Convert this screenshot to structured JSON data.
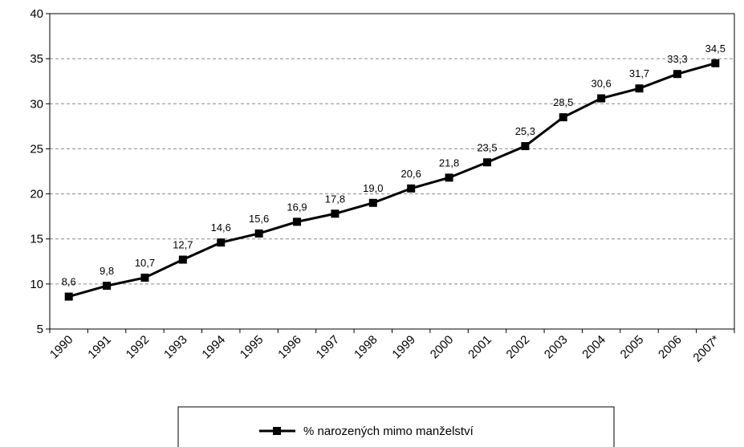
{
  "chart_data": {
    "type": "line",
    "categories": [
      "1990",
      "1991",
      "1992",
      "1993",
      "1994",
      "1995",
      "1996",
      "1997",
      "1998",
      "1999",
      "2000",
      "2001",
      "2002",
      "2003",
      "2004",
      "2005",
      "2006",
      "2007*"
    ],
    "series": [
      {
        "name": "% narozených mimo manželství",
        "color": "#000000",
        "values": [
          8.6,
          9.8,
          10.7,
          12.7,
          14.6,
          15.6,
          16.9,
          17.8,
          19.0,
          20.6,
          21.8,
          23.5,
          25.3,
          28.5,
          30.6,
          31.7,
          33.3,
          34.5
        ],
        "value_labels": [
          "8,6",
          "9,8",
          "10,7",
          "12,7",
          "14,6",
          "15,6",
          "16,9",
          "17,8",
          "19,0",
          "20,6",
          "21,8",
          "23,5",
          "25,3",
          "28,5",
          "30,6",
          "31,7",
          "33,3",
          "34,5"
        ]
      }
    ],
    "ylim": [
      5,
      40
    ],
    "yticks": [
      5,
      10,
      15,
      20,
      25,
      30,
      35,
      40
    ],
    "grid": true,
    "legend": "bottom"
  }
}
